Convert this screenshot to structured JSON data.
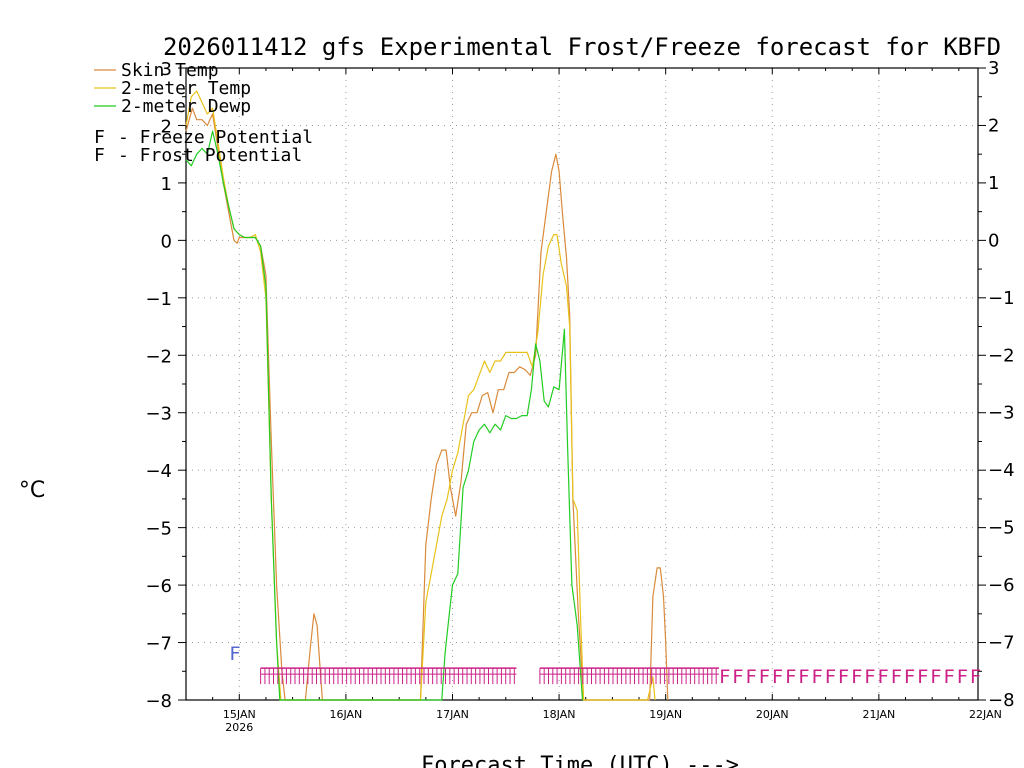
{
  "chart_data": {
    "type": "line",
    "title": "2026011412 gfs Experimental Frost/Freeze forecast for KBFD",
    "ylabel": "°C",
    "xlabel": "Forecast Time (UTC) --->",
    "ylim": [
      -8,
      3
    ],
    "yticks": [
      3,
      2,
      1,
      0,
      -1,
      -2,
      -3,
      -4,
      -5,
      -6,
      -7,
      -8
    ],
    "ytick_labels": [
      "3",
      "2",
      "1",
      "0",
      "−1",
      "−2",
      "−3",
      "−4",
      "−5",
      "−6",
      "−7",
      "−8"
    ],
    "xlim_days": [
      0.5,
      7.93
    ],
    "xticks": [
      {
        "day": 1,
        "label": "15JAN",
        "sub": "2026"
      },
      {
        "day": 2,
        "label": "16JAN",
        "sub": ""
      },
      {
        "day": 3,
        "label": "17JAN",
        "sub": ""
      },
      {
        "day": 4,
        "label": "18JAN",
        "sub": ""
      },
      {
        "day": 5,
        "label": "19JAN",
        "sub": ""
      },
      {
        "day": 6,
        "label": "20JAN",
        "sub": ""
      },
      {
        "day": 7,
        "label": "21JAN",
        "sub": ""
      },
      {
        "day": 8,
        "label": "22JAN",
        "sub": ""
      }
    ],
    "grid": true,
    "series": [
      {
        "name": "Skin Temp",
        "color": "#d98a3a",
        "points": [
          [
            0.5,
            1.9
          ],
          [
            0.56,
            2.3
          ],
          [
            0.6,
            2.1
          ],
          [
            0.65,
            2.1
          ],
          [
            0.7,
            2.0
          ],
          [
            0.75,
            2.2
          ],
          [
            0.8,
            1.6
          ],
          [
            0.85,
            1.0
          ],
          [
            0.9,
            0.5
          ],
          [
            0.95,
            0.0
          ],
          [
            0.98,
            -0.05
          ],
          [
            1.0,
            0.05
          ],
          [
            1.05,
            0.05
          ],
          [
            1.1,
            0.05
          ],
          [
            1.15,
            0.05
          ],
          [
            1.2,
            -0.1
          ],
          [
            1.25,
            -0.6
          ],
          [
            1.3,
            -3.5
          ],
          [
            1.35,
            -6.0
          ],
          [
            1.4,
            -7.5
          ],
          [
            1.43,
            -8.0
          ],
          [
            1.62,
            -8.0
          ],
          [
            1.66,
            -7.2
          ],
          [
            1.7,
            -6.5
          ],
          [
            1.73,
            -6.7
          ],
          [
            1.76,
            -7.5
          ],
          [
            1.78,
            -8.0
          ],
          [
            2.7,
            -8.0
          ],
          [
            2.75,
            -5.3
          ],
          [
            2.8,
            -4.5
          ],
          [
            2.85,
            -3.9
          ],
          [
            2.9,
            -3.65
          ],
          [
            2.94,
            -3.65
          ],
          [
            2.98,
            -4.3
          ],
          [
            3.03,
            -4.8
          ],
          [
            3.08,
            -4.2
          ],
          [
            3.13,
            -3.2
          ],
          [
            3.18,
            -3.0
          ],
          [
            3.23,
            -3.0
          ],
          [
            3.28,
            -2.7
          ],
          [
            3.33,
            -2.65
          ],
          [
            3.38,
            -3.0
          ],
          [
            3.43,
            -2.6
          ],
          [
            3.48,
            -2.6
          ],
          [
            3.53,
            -2.3
          ],
          [
            3.58,
            -2.3
          ],
          [
            3.63,
            -2.2
          ],
          [
            3.68,
            -2.25
          ],
          [
            3.73,
            -2.35
          ],
          [
            3.78,
            -2.0
          ],
          [
            3.83,
            -0.2
          ],
          [
            3.88,
            0.5
          ],
          [
            3.93,
            1.2
          ],
          [
            3.97,
            1.5
          ],
          [
            4.0,
            1.2
          ],
          [
            4.03,
            0.5
          ],
          [
            4.07,
            -0.3
          ],
          [
            4.1,
            -1.3
          ],
          [
            4.13,
            -4.5
          ],
          [
            4.18,
            -6.5
          ],
          [
            4.23,
            -8.0
          ],
          [
            4.85,
            -8.0
          ],
          [
            4.88,
            -6.2
          ],
          [
            4.92,
            -5.7
          ],
          [
            4.95,
            -5.7
          ],
          [
            4.98,
            -6.2
          ],
          [
            5.0,
            -7.0
          ],
          [
            5.02,
            -8.0
          ]
        ]
      },
      {
        "name": "2-meter Temp",
        "color": "#e8c21a",
        "points": [
          [
            0.5,
            2.0
          ],
          [
            0.55,
            2.5
          ],
          [
            0.6,
            2.6
          ],
          [
            0.65,
            2.4
          ],
          [
            0.7,
            2.2
          ],
          [
            0.75,
            2.3
          ],
          [
            0.8,
            1.7
          ],
          [
            0.85,
            1.1
          ],
          [
            0.9,
            0.6
          ],
          [
            0.95,
            0.2
          ],
          [
            1.0,
            0.1
          ],
          [
            1.05,
            0.05
          ],
          [
            1.1,
            0.05
          ],
          [
            1.15,
            0.1
          ],
          [
            1.2,
            -0.2
          ],
          [
            1.25,
            -1.0
          ],
          [
            1.3,
            -4.5
          ],
          [
            1.35,
            -7.0
          ],
          [
            1.39,
            -8.0
          ],
          [
            2.7,
            -8.0
          ],
          [
            2.75,
            -6.3
          ],
          [
            2.8,
            -5.8
          ],
          [
            2.85,
            -5.3
          ],
          [
            2.9,
            -4.8
          ],
          [
            2.95,
            -4.5
          ],
          [
            3.0,
            -4.0
          ],
          [
            3.05,
            -3.7
          ],
          [
            3.1,
            -3.2
          ],
          [
            3.15,
            -2.7
          ],
          [
            3.2,
            -2.6
          ],
          [
            3.25,
            -2.35
          ],
          [
            3.3,
            -2.1
          ],
          [
            3.35,
            -2.3
          ],
          [
            3.4,
            -2.1
          ],
          [
            3.45,
            -2.1
          ],
          [
            3.5,
            -1.95
          ],
          [
            3.55,
            -1.95
          ],
          [
            3.6,
            -1.95
          ],
          [
            3.65,
            -1.95
          ],
          [
            3.7,
            -1.95
          ],
          [
            3.75,
            -2.2
          ],
          [
            3.8,
            -1.6
          ],
          [
            3.85,
            -0.6
          ],
          [
            3.9,
            -0.1
          ],
          [
            3.95,
            0.1
          ],
          [
            3.98,
            0.1
          ],
          [
            4.02,
            -0.4
          ],
          [
            4.07,
            -0.8
          ],
          [
            4.1,
            -1.5
          ],
          [
            4.13,
            -4.5
          ],
          [
            4.17,
            -4.7
          ],
          [
            4.2,
            -6.5
          ],
          [
            4.23,
            -8.0
          ],
          [
            4.83,
            -8.0
          ],
          [
            4.88,
            -7.6
          ],
          [
            4.9,
            -8.0
          ]
        ]
      },
      {
        "name": "2-meter Dewp",
        "color": "#22cc22",
        "points": [
          [
            0.5,
            1.4
          ],
          [
            0.55,
            1.3
          ],
          [
            0.6,
            1.5
          ],
          [
            0.65,
            1.6
          ],
          [
            0.7,
            1.5
          ],
          [
            0.75,
            1.9
          ],
          [
            0.8,
            1.5
          ],
          [
            0.85,
            1.0
          ],
          [
            0.9,
            0.6
          ],
          [
            0.95,
            0.2
          ],
          [
            1.0,
            0.1
          ],
          [
            1.05,
            0.05
          ],
          [
            1.1,
            0.05
          ],
          [
            1.15,
            0.05
          ],
          [
            1.2,
            -0.1
          ],
          [
            1.25,
            -0.8
          ],
          [
            1.3,
            -4.5
          ],
          [
            1.35,
            -7.0
          ],
          [
            1.38,
            -8.0
          ],
          [
            2.9,
            -8.0
          ],
          [
            2.93,
            -7.2
          ],
          [
            2.97,
            -6.5
          ],
          [
            3.0,
            -6.0
          ],
          [
            3.05,
            -5.8
          ],
          [
            3.1,
            -4.3
          ],
          [
            3.15,
            -4.0
          ],
          [
            3.2,
            -3.5
          ],
          [
            3.25,
            -3.3
          ],
          [
            3.3,
            -3.2
          ],
          [
            3.35,
            -3.35
          ],
          [
            3.4,
            -3.2
          ],
          [
            3.45,
            -3.3
          ],
          [
            3.5,
            -3.05
          ],
          [
            3.55,
            -3.1
          ],
          [
            3.6,
            -3.1
          ],
          [
            3.65,
            -3.05
          ],
          [
            3.7,
            -3.05
          ],
          [
            3.74,
            -2.6
          ],
          [
            3.78,
            -1.8
          ],
          [
            3.82,
            -2.1
          ],
          [
            3.86,
            -2.8
          ],
          [
            3.9,
            -2.9
          ],
          [
            3.95,
            -2.55
          ],
          [
            4.0,
            -2.6
          ],
          [
            4.05,
            -1.55
          ],
          [
            4.08,
            -3.6
          ],
          [
            4.12,
            -6.0
          ],
          [
            4.17,
            -6.7
          ],
          [
            4.22,
            -8.0
          ]
        ]
      }
    ],
    "legend": {
      "placement": "top-left",
      "entries": [
        {
          "label": "Skin Temp",
          "color": "#d98a3a"
        },
        {
          "label": "2-meter Temp",
          "color": "#e8c21a"
        },
        {
          "label": "2-meter Dewp",
          "color": "#22cc22"
        }
      ],
      "flag_entries": [
        {
          "letter": "F",
          "text": "- Freeze Potential",
          "color": "#cc2288"
        },
        {
          "letter": "F",
          "text": "- Frost Potential",
          "color": "#5566cc"
        }
      ]
    },
    "annotations": {
      "frost_flag": {
        "letter": "F",
        "day": 0.96,
        "value": -7.2,
        "color": "#5566cc"
      },
      "freeze_rows": [
        {
          "from_day": 1.2,
          "to_day": 3.6,
          "letter": "F",
          "color": "#cc2288",
          "style": "dense"
        },
        {
          "from_day": 3.82,
          "to_day": 5.5,
          "letter": "F",
          "color": "#cc2288",
          "style": "dense"
        },
        {
          "from_day": 5.5,
          "to_day": 8.0,
          "letter": "F",
          "color": "#cc2288",
          "style": "sparse"
        }
      ]
    }
  }
}
